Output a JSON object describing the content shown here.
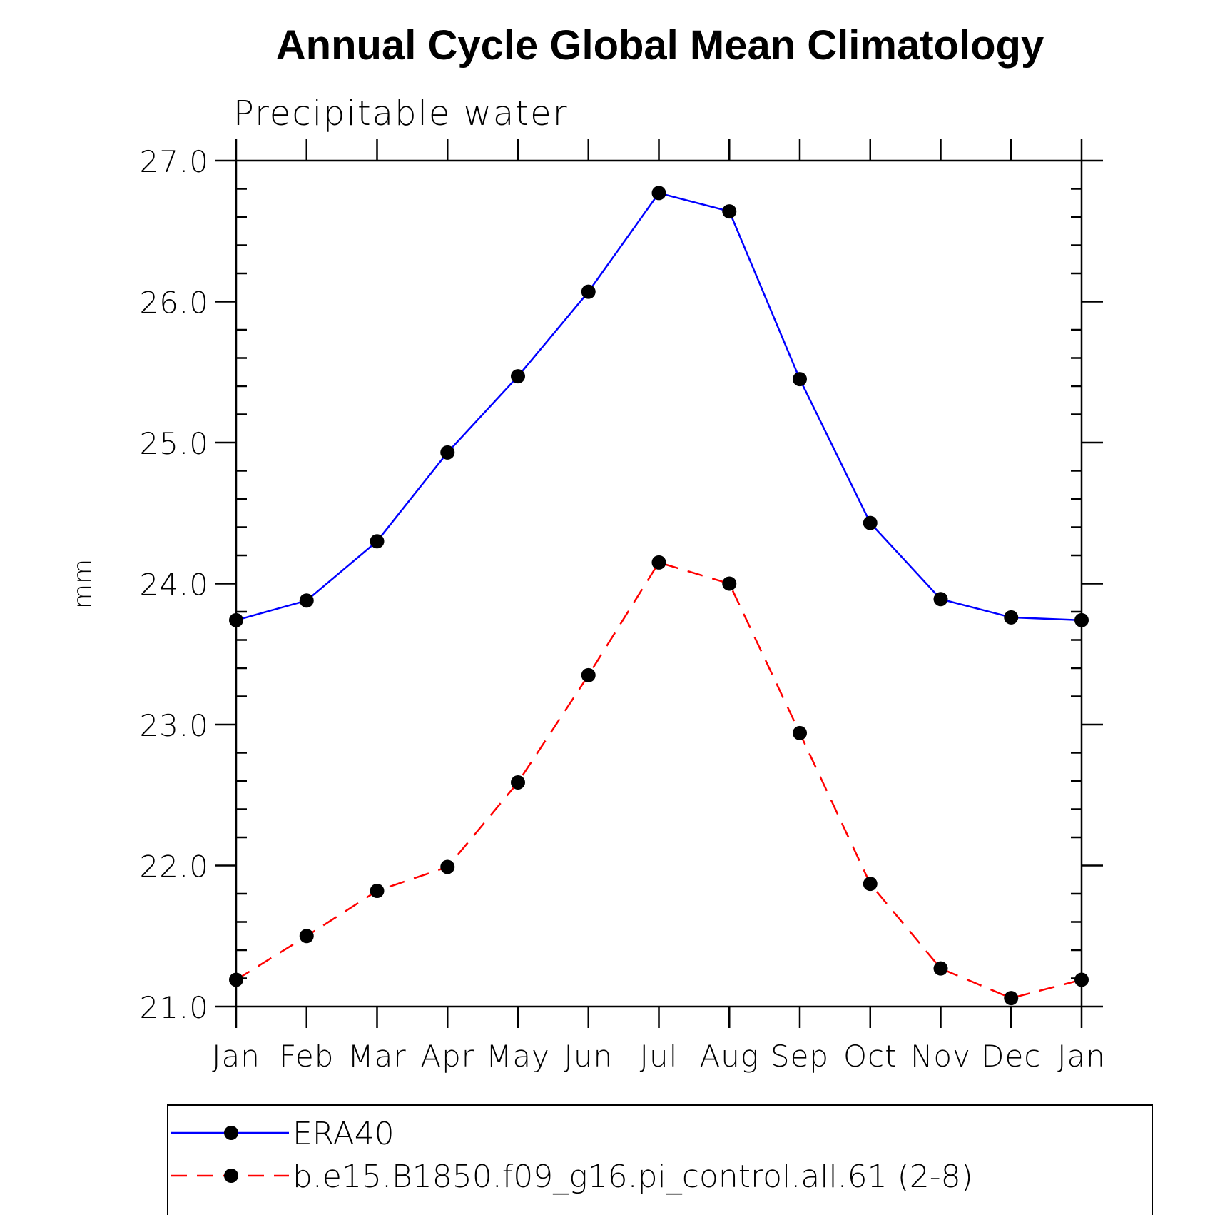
{
  "chart_data": {
    "type": "line",
    "title": "Annual Cycle Global Mean Climatology",
    "subtitle": "Precipitable water",
    "xlabel": "",
    "ylabel": "mm",
    "categories": [
      "Jan",
      "Feb",
      "Mar",
      "Apr",
      "May",
      "Jun",
      "Jul",
      "Aug",
      "Sep",
      "Oct",
      "Nov",
      "Dec",
      "Jan"
    ],
    "ylim": [
      21.0,
      27.0
    ],
    "yticks": [
      21.0,
      22.0,
      23.0,
      24.0,
      25.0,
      26.0,
      27.0
    ],
    "ytick_labels": [
      "21.0",
      "22.0",
      "23.0",
      "24.0",
      "25.0",
      "26.0",
      "27.0"
    ],
    "y_minor_step": 0.2,
    "series": [
      {
        "name": "ERA40",
        "color": "#0000ff",
        "dash": "solid",
        "marker": "filled-circle",
        "values": [
          23.74,
          23.88,
          24.3,
          24.93,
          25.47,
          26.07,
          26.77,
          26.64,
          25.45,
          24.43,
          23.89,
          23.76,
          23.74
        ]
      },
      {
        "name": "b.e15.B1850.f09_g16.pi_control.all.61 (2-8)",
        "color": "#ff0000",
        "dash": "dashed",
        "marker": "filled-circle",
        "values": [
          21.19,
          21.5,
          21.82,
          21.99,
          22.59,
          23.35,
          24.15,
          24.0,
          22.94,
          21.87,
          21.27,
          21.06,
          21.19
        ]
      }
    ],
    "legend_position": "bottom"
  }
}
